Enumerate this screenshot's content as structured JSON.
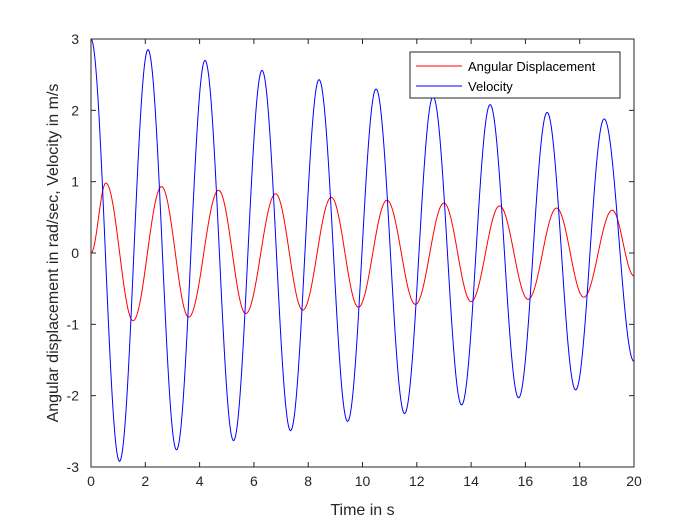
{
  "chart_data": {
    "type": "line",
    "title": "",
    "xlabel": "Time in s",
    "ylabel": "Angular displacement in rad/sec, Velocity in m/s",
    "xlim": [
      0,
      20
    ],
    "ylim": [
      -3,
      3
    ],
    "x_ticks": [
      0,
      2,
      4,
      6,
      8,
      10,
      12,
      14,
      16,
      18,
      20
    ],
    "y_ticks": [
      -3,
      -2,
      -1,
      0,
      1,
      2,
      3
    ],
    "grid": false,
    "box": true,
    "legend_position": "top-right",
    "series": [
      {
        "name": "Angular Displacement",
        "color": "#ff0000",
        "sampled_from": "damped sine",
        "x": [
          0,
          0.55,
          1.55,
          2.6,
          3.6,
          4.7,
          5.7,
          6.8,
          7.8,
          8.85,
          9.85,
          10.9,
          11.95,
          13.0,
          14.0,
          15.05,
          16.1,
          17.15,
          18.15,
          19.2,
          20.0
        ],
        "values": [
          0,
          0.98,
          -0.95,
          0.93,
          -0.9,
          0.88,
          -0.85,
          0.83,
          -0.8,
          0.78,
          -0.76,
          0.74,
          -0.72,
          0.7,
          -0.68,
          0.66,
          -0.65,
          0.63,
          -0.62,
          0.6,
          -0.32
        ]
      },
      {
        "name": "Velocity",
        "color": "#0000ff",
        "x": [
          0,
          1.05,
          2.1,
          3.15,
          4.2,
          5.25,
          6.3,
          7.35,
          8.4,
          9.45,
          10.5,
          11.55,
          12.6,
          13.65,
          14.7,
          15.75,
          16.8,
          17.85,
          18.9,
          20.0
        ],
        "values": [
          3.0,
          -2.92,
          2.85,
          -2.76,
          2.7,
          -2.63,
          2.56,
          -2.49,
          2.43,
          -2.36,
          2.3,
          -2.25,
          2.19,
          -2.13,
          2.08,
          -2.03,
          1.97,
          -1.92,
          1.88,
          -1.52
        ]
      }
    ]
  }
}
